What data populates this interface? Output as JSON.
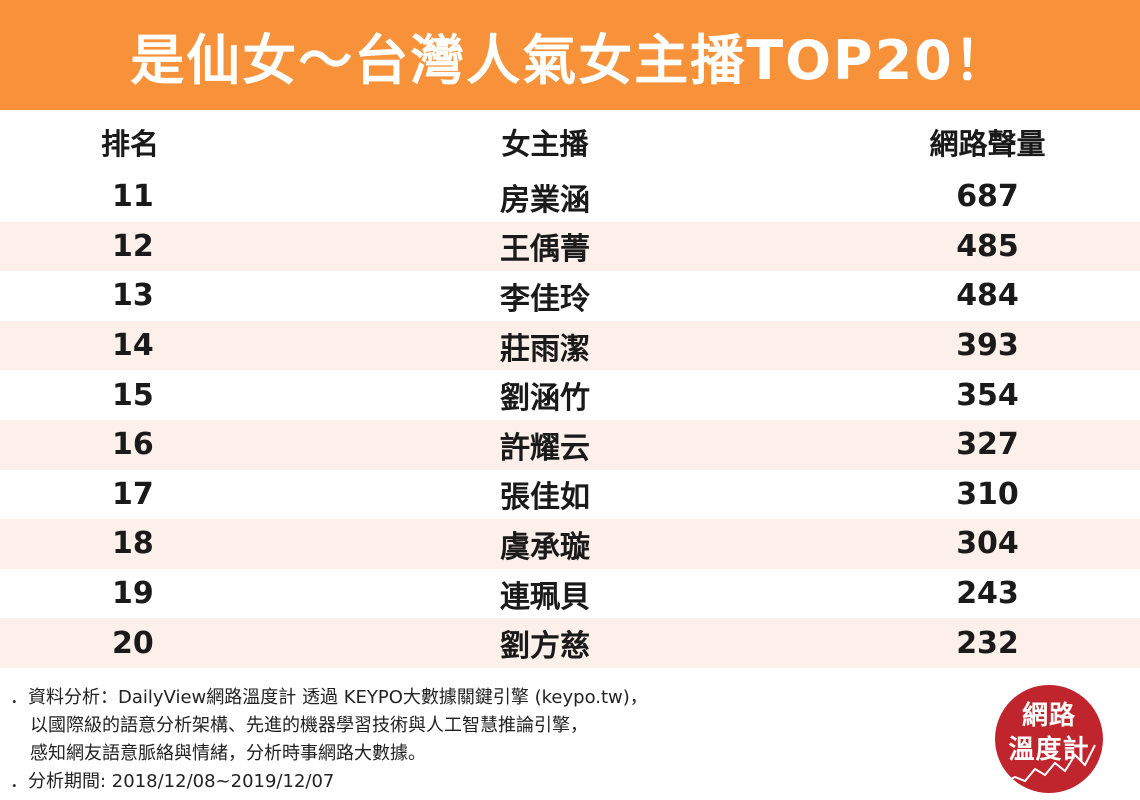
{
  "header": {
    "title": "是仙女～台灣人氣女主播TOP20！",
    "background_color": "#f7923a"
  },
  "table": {
    "columns": [
      "排名",
      "女主播",
      "網路聲量"
    ],
    "rows": [
      {
        "rank": "11",
        "name": "房業涵",
        "score": "687"
      },
      {
        "rank": "12",
        "name": "王偊菁",
        "score": "485"
      },
      {
        "rank": "13",
        "name": "李佳玲",
        "score": "484"
      },
      {
        "rank": "14",
        "name": "莊雨潔",
        "score": "393"
      },
      {
        "rank": "15",
        "name": "劉涵竹",
        "score": "354"
      },
      {
        "rank": "16",
        "name": "許耀云",
        "score": "327"
      },
      {
        "rank": "17",
        "name": "張佳如",
        "score": "310"
      },
      {
        "rank": "18",
        "name": "虞承璇",
        "score": "304"
      },
      {
        "rank": "19",
        "name": "連珮貝",
        "score": "243"
      },
      {
        "rank": "20",
        "name": "劉方慈",
        "score": "232"
      }
    ],
    "shade_color": "#fdf0ea"
  },
  "footer": {
    "line1": "．資料分析：DailyView網路溫度計 透過 KEYPO大數據關鍵引擎 (keypo.tw)，",
    "line2": "以國際級的語意分析架構、先進的機器學習技術與人工智慧推論引擎，",
    "line3": "感知網友語意脈絡與情緒，分析時事網路大數據。",
    "line4": "．分析期間: 2018/12/08~2019/12/07"
  },
  "logo": {
    "line1": "網路",
    "line2": "溫度計",
    "color": "#c0242c"
  }
}
